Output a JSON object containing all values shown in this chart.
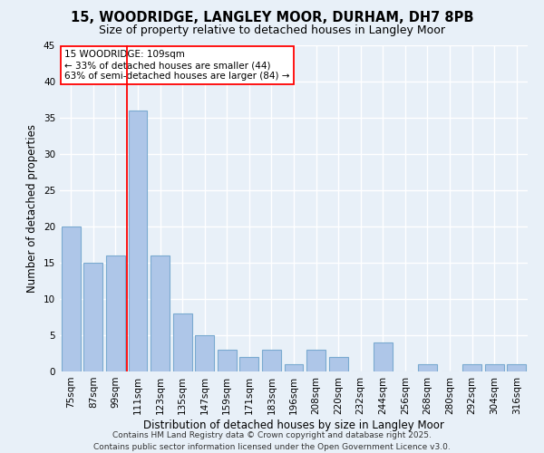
{
  "title1": "15, WOODRIDGE, LANGLEY MOOR, DURHAM, DH7 8PB",
  "title2": "Size of property relative to detached houses in Langley Moor",
  "xlabel": "Distribution of detached houses by size in Langley Moor",
  "ylabel": "Number of detached properties",
  "categories": [
    "75sqm",
    "87sqm",
    "99sqm",
    "111sqm",
    "123sqm",
    "135sqm",
    "147sqm",
    "159sqm",
    "171sqm",
    "183sqm",
    "196sqm",
    "208sqm",
    "220sqm",
    "232sqm",
    "244sqm",
    "256sqm",
    "268sqm",
    "280sqm",
    "292sqm",
    "304sqm",
    "316sqm"
  ],
  "values": [
    20,
    15,
    16,
    36,
    16,
    8,
    5,
    3,
    2,
    3,
    1,
    3,
    2,
    0,
    4,
    0,
    1,
    0,
    1,
    1,
    1
  ],
  "bar_color": "#aec6e8",
  "bar_edge_color": "#7aaad0",
  "annotation_text_line1": "15 WOODRIDGE: 109sqm",
  "annotation_text_line2": "← 33% of detached houses are smaller (44)",
  "annotation_text_line3": "63% of semi-detached houses are larger (84) →",
  "annotation_box_color": "white",
  "annotation_box_edge_color": "red",
  "vline_color": "red",
  "vline_x": 3.0,
  "ylim": [
    0,
    45
  ],
  "yticks": [
    0,
    5,
    10,
    15,
    20,
    25,
    30,
    35,
    40,
    45
  ],
  "footer1": "Contains HM Land Registry data © Crown copyright and database right 2025.",
  "footer2": "Contains public sector information licensed under the Open Government Licence v3.0.",
  "bg_color": "#e8f0f8",
  "grid_color": "#ffffff",
  "title_fontsize": 10.5,
  "subtitle_fontsize": 9,
  "axis_label_fontsize": 8.5,
  "tick_fontsize": 7.5,
  "annotation_fontsize": 7.5,
  "footer_fontsize": 6.5
}
